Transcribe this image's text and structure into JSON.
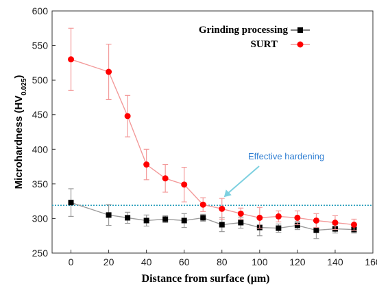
{
  "chart_data": {
    "type": "line",
    "xlabel": "Distance from surface (μm)",
    "ylabel_main": "Microhardness (HV",
    "ylabel_sub": "0.025",
    "ylabel_close": ")",
    "xlim": [
      -10,
      160
    ],
    "ylim": [
      250,
      600
    ],
    "xticks": [
      0,
      20,
      40,
      60,
      80,
      100,
      120,
      140,
      160
    ],
    "yticks": [
      250,
      300,
      350,
      400,
      450,
      500,
      550,
      600
    ],
    "legend_position": "top-right",
    "series": [
      {
        "name": "Grinding processing",
        "color": "#000000",
        "marker": "square",
        "x": [
          0,
          20,
          30,
          40,
          50,
          60,
          70,
          80,
          90,
          100,
          110,
          120,
          130,
          140,
          150
        ],
        "y": [
          323,
          305,
          301,
          297,
          299,
          297,
          301,
          291,
          294,
          287,
          286,
          290,
          283,
          285,
          284
        ],
        "err": [
          20,
          15,
          8,
          8,
          5,
          10,
          5,
          10,
          8,
          12,
          6,
          6,
          12,
          6,
          5
        ]
      },
      {
        "name": "SURT",
        "color": "#ff0000",
        "marker": "circle",
        "x": [
          0,
          20,
          30,
          40,
          50,
          60,
          70,
          80,
          90,
          100,
          110,
          120,
          130,
          140,
          150
        ],
        "y": [
          530,
          512,
          448,
          378,
          358,
          349,
          320,
          314,
          307,
          301,
          303,
          301,
          297,
          294,
          291
        ],
        "err": [
          45,
          40,
          30,
          22,
          20,
          25,
          10,
          15,
          8,
          15,
          8,
          10,
          10,
          10,
          8
        ]
      }
    ],
    "reference_line": {
      "y": 319,
      "color": "#2a9fbc",
      "style": "dotted"
    },
    "annotation": {
      "text": "Effective hardening",
      "color": "#2d7dd2",
      "arrow_color": "#7dd0e0",
      "points_to_x": 80
    }
  }
}
